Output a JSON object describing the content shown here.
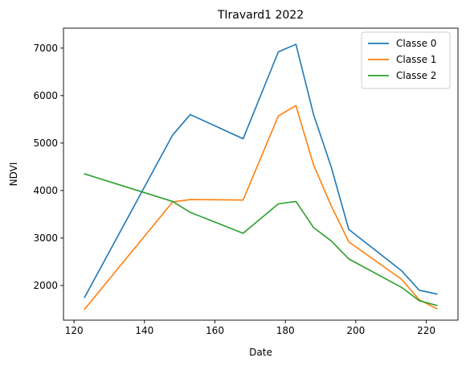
{
  "chart_data": {
    "type": "line",
    "title": "TIravard1 2022",
    "xlabel": "Date",
    "ylabel": "NDVI",
    "xlim": [
      117,
      229
    ],
    "ylim": [
      1270,
      7420
    ],
    "xticks": [
      120,
      140,
      160,
      180,
      200,
      220
    ],
    "yticks": [
      2000,
      3000,
      4000,
      5000,
      6000,
      7000
    ],
    "grid": false,
    "legend_position": "top-right",
    "series": [
      {
        "name": "Classe 0",
        "color": "#1f77b4",
        "x": [
          123,
          148,
          153,
          168,
          178,
          183,
          188,
          193,
          198,
          213,
          218,
          223
        ],
        "y": [
          1750,
          5170,
          5600,
          5090,
          6920,
          7080,
          5600,
          4500,
          3180,
          2310,
          1900,
          1820
        ]
      },
      {
        "name": "Classe 1",
        "color": "#ff7f0e",
        "x": [
          123,
          148,
          153,
          168,
          178,
          183,
          188,
          193,
          198,
          213,
          218,
          223
        ],
        "y": [
          1500,
          3760,
          3810,
          3800,
          5570,
          5790,
          4540,
          3680,
          2920,
          2130,
          1700,
          1510
        ]
      },
      {
        "name": "Classe 2",
        "color": "#2ca02c",
        "x": [
          123,
          148,
          153,
          168,
          178,
          183,
          188,
          193,
          198,
          213,
          218,
          223
        ],
        "y": [
          4350,
          3770,
          3540,
          3100,
          3720,
          3770,
          3220,
          2940,
          2560,
          1960,
          1680,
          1580
        ]
      }
    ]
  }
}
